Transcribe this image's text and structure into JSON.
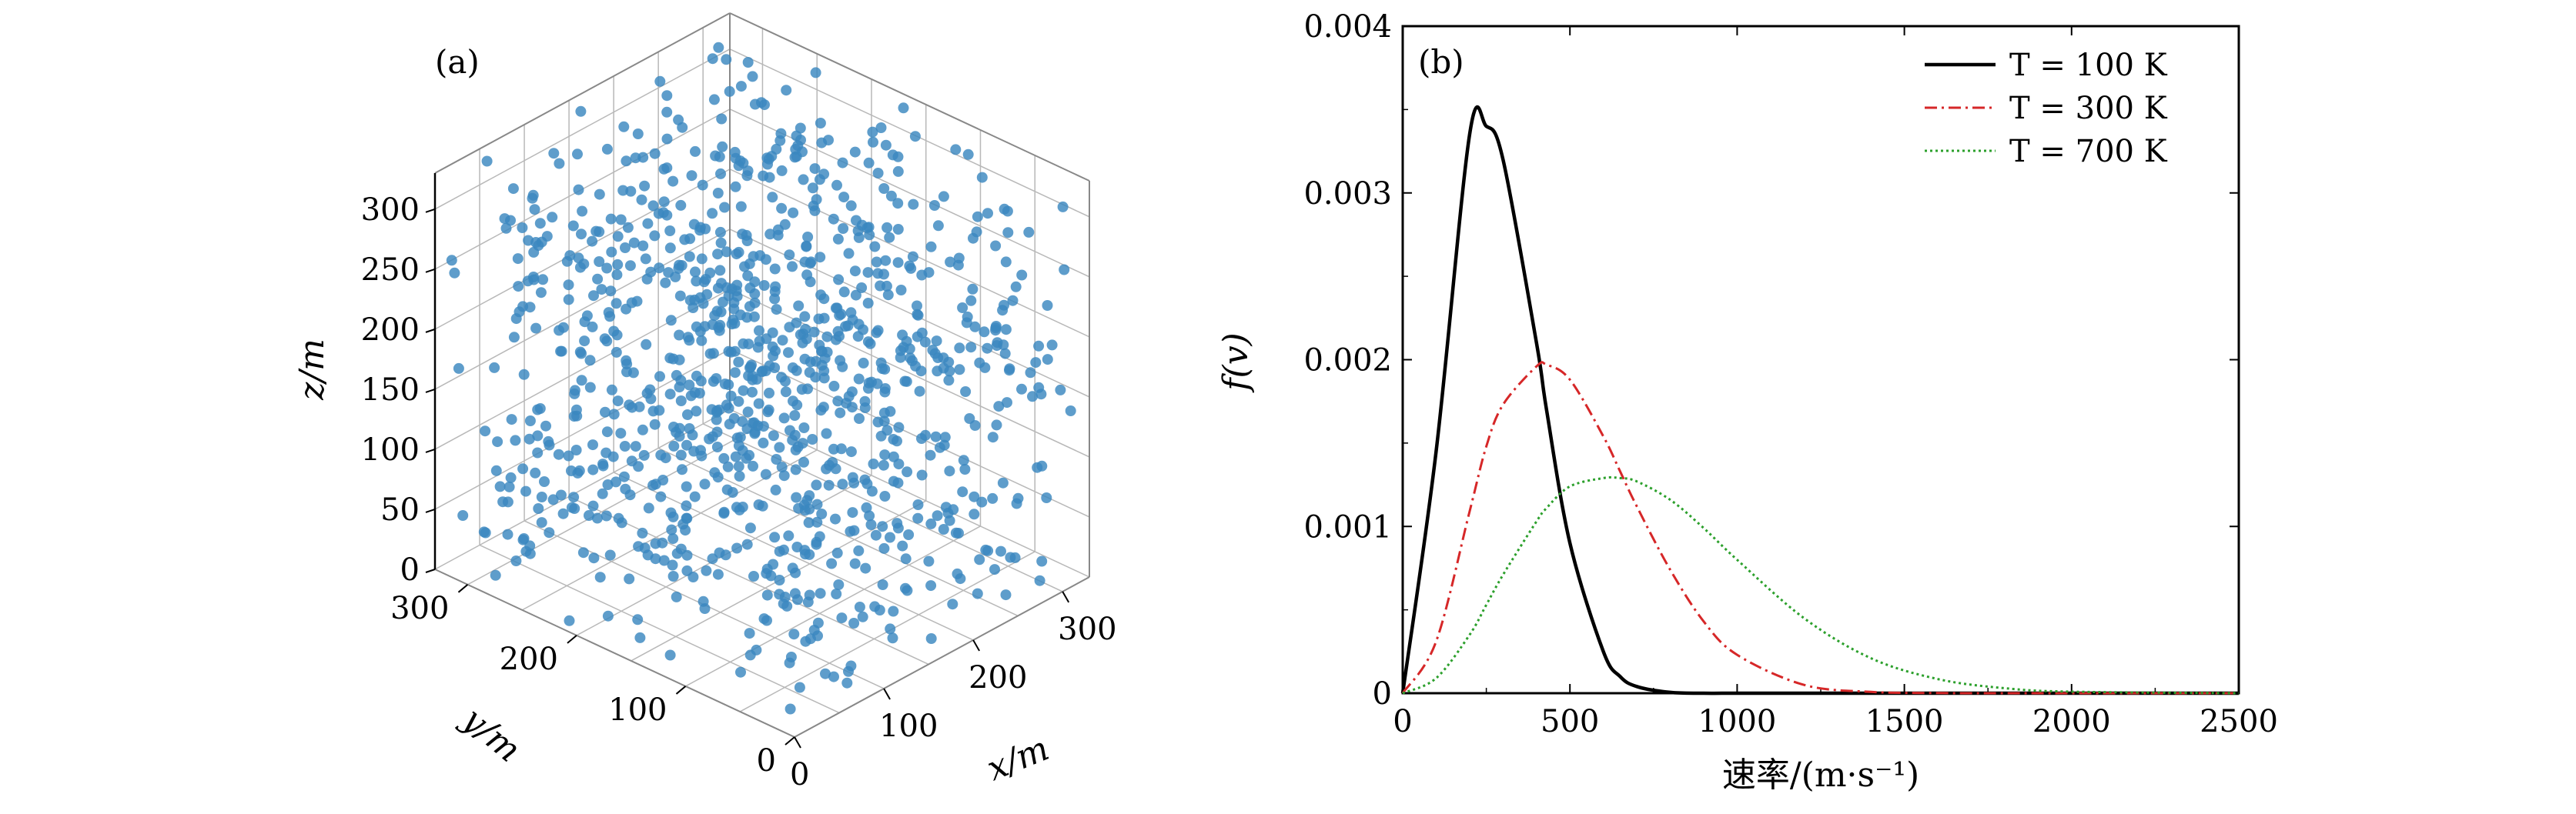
{
  "chart_data": [
    {
      "type": "scatter3d",
      "panel_label": "(a)",
      "xlabel": "x/m",
      "ylabel": "y/m",
      "zlabel": "z/m",
      "xlim": [
        0,
        330
      ],
      "ylim": [
        0,
        330
      ],
      "zlim": [
        0,
        330
      ],
      "x_ticks": [
        "0",
        "100",
        "200",
        "300"
      ],
      "y_ticks": [
        "0",
        "100",
        "200",
        "300"
      ],
      "z_ticks": [
        "0",
        "50",
        "100",
        "150",
        "200",
        "250",
        "300"
      ],
      "grid": true,
      "point_color": "#3a87c0",
      "point_count": 1000,
      "distribution": "uniform random in [0, 330] m cube"
    },
    {
      "type": "line",
      "panel_label": "(b)",
      "title": "",
      "xlabel": "速率/(m·s⁻¹)",
      "ylabel": "f(v)",
      "xlim": [
        0,
        2500
      ],
      "ylim": [
        0,
        0.004
      ],
      "x_ticks": [
        "0",
        "500",
        "1000",
        "1500",
        "2000",
        "2500"
      ],
      "y_ticks": [
        "0",
        "0.001",
        "0.002",
        "0.003",
        "0.004"
      ],
      "legend_position": "top-right",
      "x": [
        0,
        100,
        200,
        250,
        300,
        400,
        430,
        500,
        600,
        650,
        700,
        800,
        900,
        1000,
        1200,
        1400,
        1600,
        1800,
        2000,
        2500
      ],
      "series": [
        {
          "name": "T = 100 K",
          "color": "#000000",
          "style": "solid",
          "values": [
            0,
            0.00145,
            0.00335,
            0.0034,
            0.0032,
            0.0021,
            0.0017,
            0.0009,
            0.00025,
            0.0001,
            4e-05,
            5e-06,
            0,
            0,
            0,
            0,
            0,
            0,
            0,
            0
          ]
        },
        {
          "name": "T = 300 K",
          "color": "#d62728",
          "style": "dash-dot",
          "values": [
            0,
            0.00031,
            0.00109,
            0.00148,
            0.00173,
            0.00196,
            0.00197,
            0.00188,
            0.00154,
            0.00133,
            0.00112,
            0.00074,
            0.00043,
            0.00023,
            5e-05,
            8e-06,
            1e-06,
            0,
            0,
            0
          ]
        },
        {
          "name": "T = 700 K",
          "color": "#2ca02c",
          "style": "dotted",
          "values": [
            0,
            9e-05,
            0.00035,
            0.00053,
            0.00071,
            0.00103,
            0.00111,
            0.00124,
            0.00129,
            0.00129,
            0.00127,
            0.00116,
            0.00099,
            0.0008,
            0.00045,
            0.00021,
            8.5e-05,
            3e-05,
            9e-06,
            0
          ]
        }
      ]
    }
  ]
}
